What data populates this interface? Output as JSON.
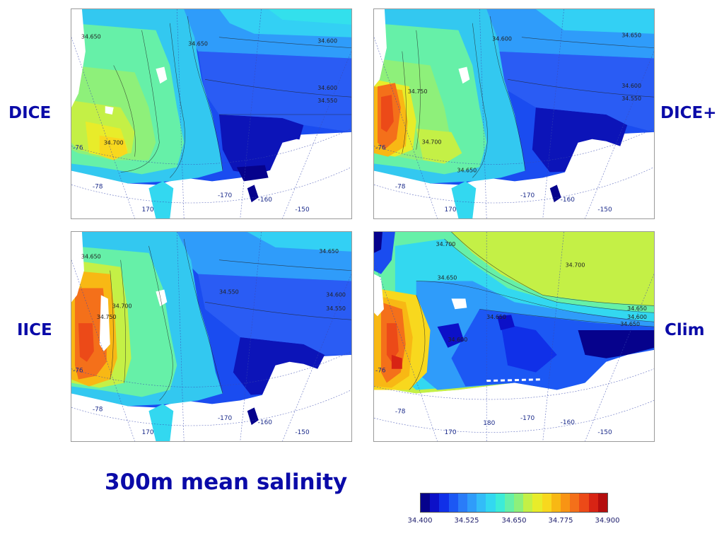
{
  "title": "300m mean salinity",
  "panels": [
    {
      "id": "dice",
      "label": "DICE"
    },
    {
      "id": "diceplus",
      "label": "DICE+"
    },
    {
      "id": "iice",
      "label": "IICE"
    },
    {
      "id": "clim",
      "label": "Clim"
    }
  ],
  "colorbar": {
    "min": 34.4,
    "max": 34.9,
    "tick_labels": [
      "34.400",
      "34.525",
      "34.650",
      "34.775",
      "34.900"
    ],
    "colors": [
      "#06028c",
      "#0c10c8",
      "#1030e8",
      "#1c58f4",
      "#2a7cf8",
      "#2f9cfa",
      "#33bcf8",
      "#33d8f0",
      "#3cecd8",
      "#66f0a8",
      "#8ef07a",
      "#c4f046",
      "#e8ec2a",
      "#f8d81e",
      "#f8b814",
      "#f89414",
      "#f4701a",
      "#ec4a18",
      "#d82414",
      "#b40e0e"
    ]
  },
  "map": {
    "lat_labels": [
      "-76",
      "-78"
    ],
    "lon_labels_top": [
      "170",
      "-170",
      "-160",
      "-150"
    ],
    "lon_labels_clim": [
      "170",
      "180",
      "-170",
      "-160",
      "-150"
    ],
    "contours": {
      "dice": [
        "34.650",
        "34.600",
        "34.650",
        "34.600",
        "34.550",
        "34.700"
      ],
      "diceplus": [
        "34.600",
        "34.650",
        "34.600",
        "34.550",
        "34.750",
        "34.700",
        "34.650"
      ],
      "iice": [
        "34.650",
        "34.550",
        "34.600",
        "34.550",
        "34.750",
        "34.700",
        "34.650"
      ],
      "clim": [
        "34.700",
        "34.700",
        "34.650",
        "34.650",
        "34.600",
        "34.650",
        "34.600",
        "34.650"
      ]
    }
  }
}
